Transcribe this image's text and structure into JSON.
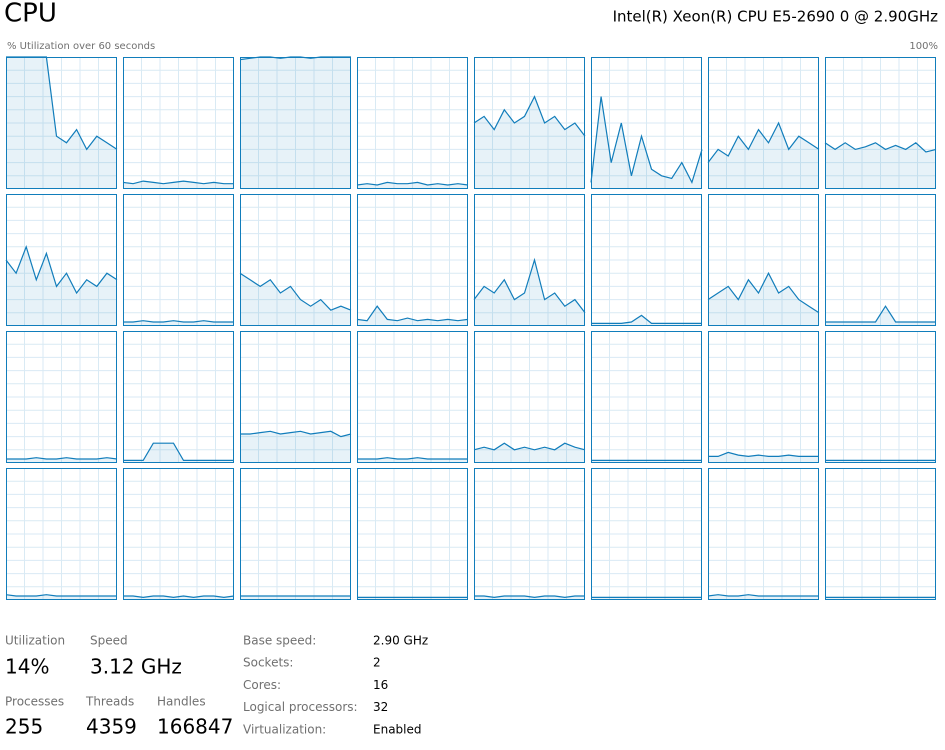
{
  "header": {
    "title": "CPU",
    "cpu_name": "Intel(R) Xeon(R) CPU E5-2690 0 @ 2.90GHz"
  },
  "graph": {
    "caption": "% Utilization over 60 seconds",
    "max": {
      "value": 100,
      "label": "100%"
    },
    "cores": [
      {
        "values": [
          100,
          100,
          100,
          100,
          100,
          40,
          35,
          45,
          30,
          40,
          35,
          30
        ]
      },
      {
        "values": [
          5,
          4,
          6,
          5,
          4,
          5,
          6,
          5,
          4,
          5,
          4,
          4
        ]
      },
      {
        "values": [
          98,
          99,
          100,
          100,
          99,
          100,
          100,
          99,
          100,
          100,
          100,
          100
        ]
      },
      {
        "values": [
          3,
          4,
          3,
          5,
          4,
          4,
          5,
          3,
          4,
          3,
          4,
          3
        ]
      },
      {
        "values": [
          50,
          55,
          45,
          60,
          50,
          55,
          70,
          50,
          55,
          45,
          50,
          40
        ]
      },
      {
        "values": [
          5,
          70,
          20,
          50,
          10,
          40,
          15,
          10,
          8,
          20,
          5,
          30
        ]
      },
      {
        "values": [
          20,
          30,
          25,
          40,
          30,
          45,
          35,
          50,
          30,
          40,
          35,
          30
        ]
      },
      {
        "values": [
          35,
          30,
          35,
          30,
          32,
          35,
          30,
          33,
          30,
          35,
          28,
          30
        ]
      },
      {
        "values": [
          50,
          40,
          60,
          35,
          55,
          30,
          40,
          25,
          35,
          30,
          40,
          35
        ]
      },
      {
        "values": [
          3,
          3,
          4,
          3,
          3,
          4,
          3,
          3,
          4,
          3,
          3,
          3
        ]
      },
      {
        "values": [
          40,
          35,
          30,
          35,
          25,
          30,
          20,
          15,
          20,
          12,
          15,
          12
        ]
      },
      {
        "values": [
          5,
          4,
          15,
          5,
          4,
          6,
          4,
          5,
          4,
          5,
          4,
          5
        ]
      },
      {
        "values": [
          20,
          30,
          25,
          35,
          20,
          25,
          50,
          20,
          25,
          15,
          20,
          10
        ]
      },
      {
        "values": [
          2,
          2,
          2,
          2,
          3,
          8,
          2,
          2,
          2,
          2,
          2,
          2
        ]
      },
      {
        "values": [
          20,
          25,
          30,
          20,
          35,
          25,
          40,
          25,
          30,
          20,
          15,
          10
        ]
      },
      {
        "values": [
          3,
          3,
          3,
          3,
          3,
          3,
          15,
          3,
          3,
          3,
          3,
          3
        ]
      },
      {
        "values": [
          3,
          3,
          3,
          4,
          3,
          3,
          4,
          3,
          3,
          3,
          4,
          3
        ]
      },
      {
        "values": [
          2,
          2,
          2,
          15,
          15,
          15,
          2,
          2,
          2,
          2,
          2,
          2
        ]
      },
      {
        "values": [
          22,
          22,
          23,
          24,
          22,
          23,
          24,
          22,
          23,
          24,
          20,
          22
        ]
      },
      {
        "values": [
          3,
          3,
          3,
          4,
          3,
          3,
          4,
          3,
          3,
          3,
          3,
          3
        ]
      },
      {
        "values": [
          10,
          12,
          10,
          15,
          10,
          12,
          10,
          12,
          10,
          15,
          12,
          10
        ]
      },
      {
        "values": [
          2,
          2,
          2,
          2,
          2,
          2,
          2,
          2,
          2,
          2,
          2,
          2
        ]
      },
      {
        "values": [
          5,
          5,
          8,
          6,
          5,
          6,
          5,
          5,
          6,
          5,
          5,
          5
        ]
      },
      {
        "values": [
          2,
          2,
          2,
          2,
          2,
          2,
          2,
          2,
          2,
          2,
          2,
          2
        ]
      },
      {
        "values": [
          4,
          3,
          3,
          3,
          4,
          3,
          3,
          3,
          3,
          3,
          3,
          3
        ]
      },
      {
        "values": [
          3,
          3,
          2,
          3,
          3,
          2,
          3,
          2,
          3,
          3,
          2,
          3
        ]
      },
      {
        "values": [
          3,
          3,
          3,
          3,
          3,
          3,
          3,
          3,
          3,
          3,
          3,
          3
        ]
      },
      {
        "values": [
          2,
          2,
          2,
          2,
          2,
          2,
          2,
          2,
          2,
          2,
          2,
          2
        ]
      },
      {
        "values": [
          3,
          3,
          2,
          3,
          3,
          3,
          2,
          3,
          3,
          2,
          3,
          3
        ]
      },
      {
        "values": [
          2,
          2,
          2,
          2,
          2,
          2,
          2,
          2,
          2,
          2,
          2,
          2
        ]
      },
      {
        "values": [
          3,
          4,
          3,
          3,
          4,
          3,
          3,
          3,
          3,
          3,
          3,
          3
        ]
      },
      {
        "values": [
          2,
          2,
          2,
          2,
          2,
          2,
          2,
          2,
          2,
          2,
          2,
          2
        ]
      }
    ]
  },
  "stats": [
    {
      "label": "Utilization",
      "value": "14%"
    },
    {
      "label": "Speed",
      "value": "3.12 GHz"
    },
    {
      "label": "Processes",
      "value": "255"
    },
    {
      "label": "Threads",
      "value": "4359"
    },
    {
      "label": "Handles",
      "value": "166847"
    }
  ],
  "details": [
    {
      "label": "Base speed:",
      "value": "2.90 GHz"
    },
    {
      "label": "Sockets:",
      "value": "2"
    },
    {
      "label": "Cores:",
      "value": "16"
    },
    {
      "label": "Logical processors:",
      "value": "32"
    },
    {
      "label": "Virtualization:",
      "value": "Enabled"
    }
  ]
}
